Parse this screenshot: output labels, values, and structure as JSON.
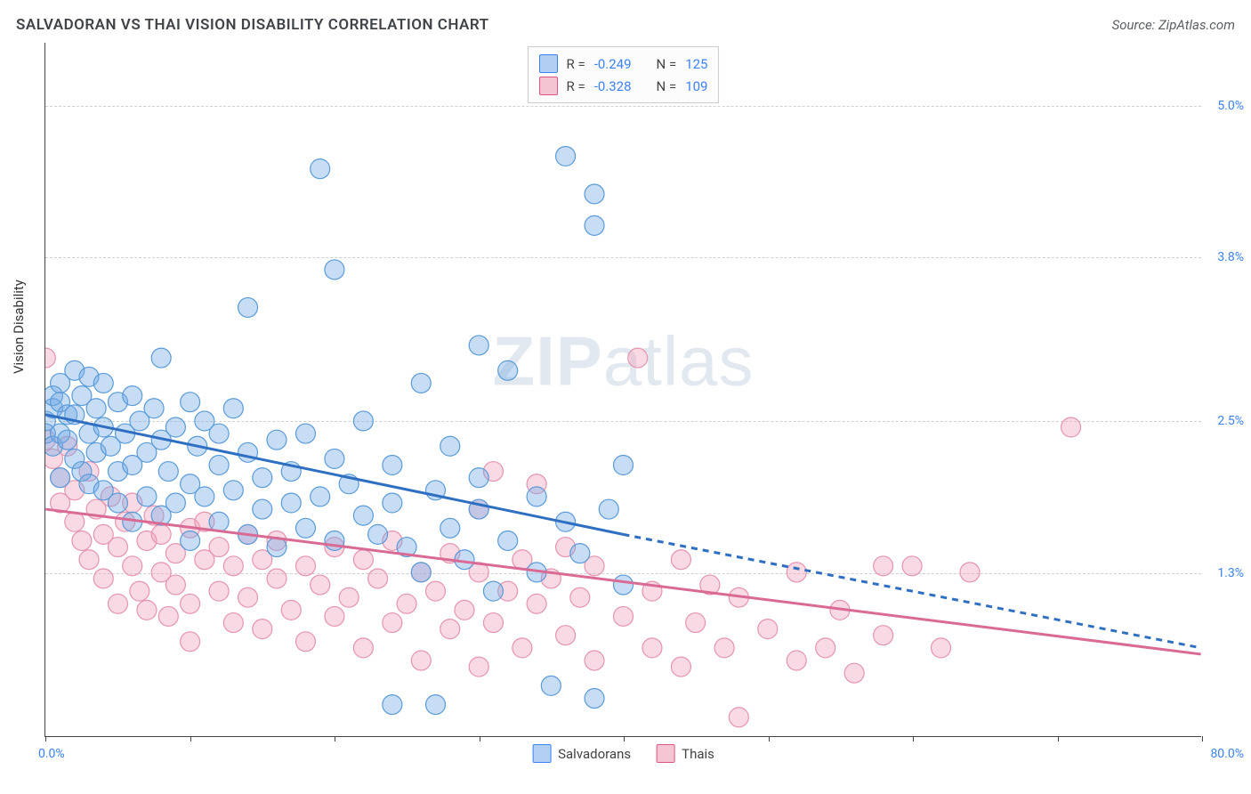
{
  "title": "SALVADORAN VS THAI VISION DISABILITY CORRELATION CHART",
  "source_label": "Source: ZipAtlas.com",
  "ylabel": "Vision Disability",
  "watermark": {
    "bold": "ZIP",
    "light": "atlas"
  },
  "stats": {
    "series1": {
      "r_label": "R =",
      "r_value": "-0.249",
      "n_label": "N =",
      "n_value": "125"
    },
    "series2": {
      "r_label": "R =",
      "r_value": "-0.328",
      "n_label": "N =",
      "n_value": "109"
    }
  },
  "legend": {
    "series1_name": "Salvadorans",
    "series2_name": "Thais"
  },
  "axes": {
    "x_min": 0,
    "x_max": 80,
    "x_label_min": "0.0%",
    "x_label_max": "80.0%",
    "x_ticks": [
      0,
      10,
      20,
      30,
      40,
      50,
      60,
      70,
      80
    ],
    "y_min": 0,
    "y_max": 5.5,
    "y_gridlines": [
      1.3,
      2.5,
      3.8,
      5.0
    ],
    "y_labels": [
      "1.3%",
      "2.5%",
      "3.8%",
      "5.0%"
    ]
  },
  "colors": {
    "blue_fill": "rgba(115,170,230,0.40)",
    "blue_stroke": "#5a9bd8",
    "pink_fill": "rgba(240,160,185,0.40)",
    "pink_stroke": "#e594af",
    "blue_line": "#2f6fc2",
    "pink_line": "#d96a94",
    "grid": "#d0d0d0",
    "tick_text": "#3b82f6"
  },
  "point_radius": 11,
  "trend_lines": {
    "blue": {
      "solid": [
        [
          0,
          2.55
        ],
        [
          40,
          1.6
        ]
      ],
      "dashed": [
        [
          40,
          1.6
        ],
        [
          80,
          0.7
        ]
      ]
    },
    "pink": {
      "solid": [
        [
          0,
          1.8
        ],
        [
          80,
          0.65
        ]
      ]
    }
  },
  "series_blue": [
    [
      0,
      2.5
    ],
    [
      0,
      2.4
    ],
    [
      0.5,
      2.6
    ],
    [
      0.5,
      2.3
    ],
    [
      0.5,
      2.7
    ],
    [
      1,
      2.4
    ],
    [
      1,
      2.65
    ],
    [
      1,
      2.8
    ],
    [
      1,
      2.05
    ],
    [
      1.5,
      2.55
    ],
    [
      1.5,
      2.35
    ],
    [
      2,
      2.9
    ],
    [
      2,
      2.2
    ],
    [
      2,
      2.55
    ],
    [
      2.5,
      2.7
    ],
    [
      2.5,
      2.1
    ],
    [
      3,
      2.85
    ],
    [
      3,
      2.4
    ],
    [
      3,
      2.0
    ],
    [
      3.5,
      2.6
    ],
    [
      3.5,
      2.25
    ],
    [
      4,
      2.45
    ],
    [
      4,
      2.8
    ],
    [
      4,
      1.95
    ],
    [
      4.5,
      2.3
    ],
    [
      5,
      2.65
    ],
    [
      5,
      2.1
    ],
    [
      5,
      1.85
    ],
    [
      5.5,
      2.4
    ],
    [
      6,
      2.7
    ],
    [
      6,
      2.15
    ],
    [
      6,
      1.7
    ],
    [
      6.5,
      2.5
    ],
    [
      7,
      2.25
    ],
    [
      7,
      1.9
    ],
    [
      7.5,
      2.6
    ],
    [
      8,
      2.35
    ],
    [
      8,
      1.75
    ],
    [
      8,
      3.0
    ],
    [
      8.5,
      2.1
    ],
    [
      9,
      2.45
    ],
    [
      9,
      1.85
    ],
    [
      10,
      2.65
    ],
    [
      10,
      2.0
    ],
    [
      10,
      1.55
    ],
    [
      10.5,
      2.3
    ],
    [
      11,
      1.9
    ],
    [
      11,
      2.5
    ],
    [
      12,
      2.15
    ],
    [
      12,
      1.7
    ],
    [
      12,
      2.4
    ],
    [
      13,
      1.95
    ],
    [
      13,
      2.6
    ],
    [
      14,
      2.25
    ],
    [
      14,
      1.6
    ],
    [
      14,
      3.4
    ],
    [
      15,
      2.05
    ],
    [
      15,
      1.8
    ],
    [
      16,
      2.35
    ],
    [
      16,
      1.5
    ],
    [
      17,
      2.1
    ],
    [
      17,
      1.85
    ],
    [
      18,
      1.65
    ],
    [
      18,
      2.4
    ],
    [
      19,
      4.5
    ],
    [
      19,
      1.9
    ],
    [
      20,
      2.2
    ],
    [
      20,
      1.55
    ],
    [
      20,
      3.7
    ],
    [
      21,
      2.0
    ],
    [
      22,
      1.75
    ],
    [
      22,
      2.5
    ],
    [
      23,
      1.6
    ],
    [
      24,
      1.85
    ],
    [
      24,
      2.15
    ],
    [
      24,
      0.25
    ],
    [
      25,
      1.5
    ],
    [
      26,
      2.8
    ],
    [
      26,
      1.3
    ],
    [
      27,
      1.95
    ],
    [
      27,
      0.25
    ],
    [
      28,
      1.65
    ],
    [
      28,
      2.3
    ],
    [
      29,
      1.4
    ],
    [
      30,
      1.8
    ],
    [
      30,
      2.05
    ],
    [
      30,
      3.1
    ],
    [
      31,
      1.15
    ],
    [
      32,
      1.55
    ],
    [
      32,
      2.9
    ],
    [
      34,
      1.3
    ],
    [
      34,
      1.9
    ],
    [
      35,
      0.4
    ],
    [
      36,
      1.7
    ],
    [
      36,
      4.6
    ],
    [
      37,
      1.45
    ],
    [
      38,
      0.3
    ],
    [
      38,
      4.3
    ],
    [
      38,
      4.05
    ],
    [
      39,
      1.8
    ],
    [
      40,
      1.2
    ],
    [
      40,
      2.15
    ]
  ],
  "series_pink": [
    [
      0,
      3.0
    ],
    [
      0,
      2.35
    ],
    [
      0.5,
      2.2
    ],
    [
      1,
      2.05
    ],
    [
      1,
      1.85
    ],
    [
      1.5,
      2.3
    ],
    [
      2,
      1.7
    ],
    [
      2,
      1.95
    ],
    [
      2.5,
      1.55
    ],
    [
      3,
      2.1
    ],
    [
      3,
      1.4
    ],
    [
      3.5,
      1.8
    ],
    [
      4,
      1.6
    ],
    [
      4,
      1.25
    ],
    [
      4.5,
      1.9
    ],
    [
      5,
      1.5
    ],
    [
      5,
      1.05
    ],
    [
      5.5,
      1.7
    ],
    [
      6,
      1.35
    ],
    [
      6,
      1.85
    ],
    [
      6.5,
      1.15
    ],
    [
      7,
      1.55
    ],
    [
      7,
      1.0
    ],
    [
      7.5,
      1.75
    ],
    [
      8,
      1.3
    ],
    [
      8,
      1.6
    ],
    [
      8.5,
      0.95
    ],
    [
      9,
      1.45
    ],
    [
      9,
      1.2
    ],
    [
      10,
      1.65
    ],
    [
      10,
      1.05
    ],
    [
      10,
      0.75
    ],
    [
      11,
      1.4
    ],
    [
      11,
      1.7
    ],
    [
      12,
      1.15
    ],
    [
      12,
      1.5
    ],
    [
      13,
      0.9
    ],
    [
      13,
      1.35
    ],
    [
      14,
      1.6
    ],
    [
      14,
      1.1
    ],
    [
      15,
      1.4
    ],
    [
      15,
      0.85
    ],
    [
      16,
      1.25
    ],
    [
      16,
      1.55
    ],
    [
      17,
      1.0
    ],
    [
      18,
      1.35
    ],
    [
      18,
      0.75
    ],
    [
      19,
      1.2
    ],
    [
      20,
      1.5
    ],
    [
      20,
      0.95
    ],
    [
      21,
      1.1
    ],
    [
      22,
      1.4
    ],
    [
      22,
      0.7
    ],
    [
      23,
      1.25
    ],
    [
      24,
      0.9
    ],
    [
      24,
      1.55
    ],
    [
      25,
      1.05
    ],
    [
      26,
      1.3
    ],
    [
      26,
      0.6
    ],
    [
      27,
      1.15
    ],
    [
      28,
      1.45
    ],
    [
      28,
      0.85
    ],
    [
      29,
      1.0
    ],
    [
      30,
      1.8
    ],
    [
      30,
      1.3
    ],
    [
      30,
      0.55
    ],
    [
      31,
      2.1
    ],
    [
      31,
      0.9
    ],
    [
      32,
      1.15
    ],
    [
      33,
      1.4
    ],
    [
      33,
      0.7
    ],
    [
      34,
      2.0
    ],
    [
      34,
      1.05
    ],
    [
      35,
      1.25
    ],
    [
      36,
      0.8
    ],
    [
      36,
      1.5
    ],
    [
      37,
      1.1
    ],
    [
      38,
      0.6
    ],
    [
      38,
      1.35
    ],
    [
      40,
      0.95
    ],
    [
      41,
      3.0
    ],
    [
      42,
      1.15
    ],
    [
      42,
      0.7
    ],
    [
      44,
      1.4
    ],
    [
      44,
      0.55
    ],
    [
      45,
      0.9
    ],
    [
      46,
      1.2
    ],
    [
      47,
      0.7
    ],
    [
      48,
      1.1
    ],
    [
      48,
      0.15
    ],
    [
      50,
      0.85
    ],
    [
      52,
      1.3
    ],
    [
      52,
      0.6
    ],
    [
      54,
      0.7
    ],
    [
      55,
      1.0
    ],
    [
      56,
      0.5
    ],
    [
      58,
      0.8
    ],
    [
      58,
      1.35
    ],
    [
      60,
      1.35
    ],
    [
      62,
      0.7
    ],
    [
      64,
      1.3
    ],
    [
      71,
      2.45
    ]
  ]
}
